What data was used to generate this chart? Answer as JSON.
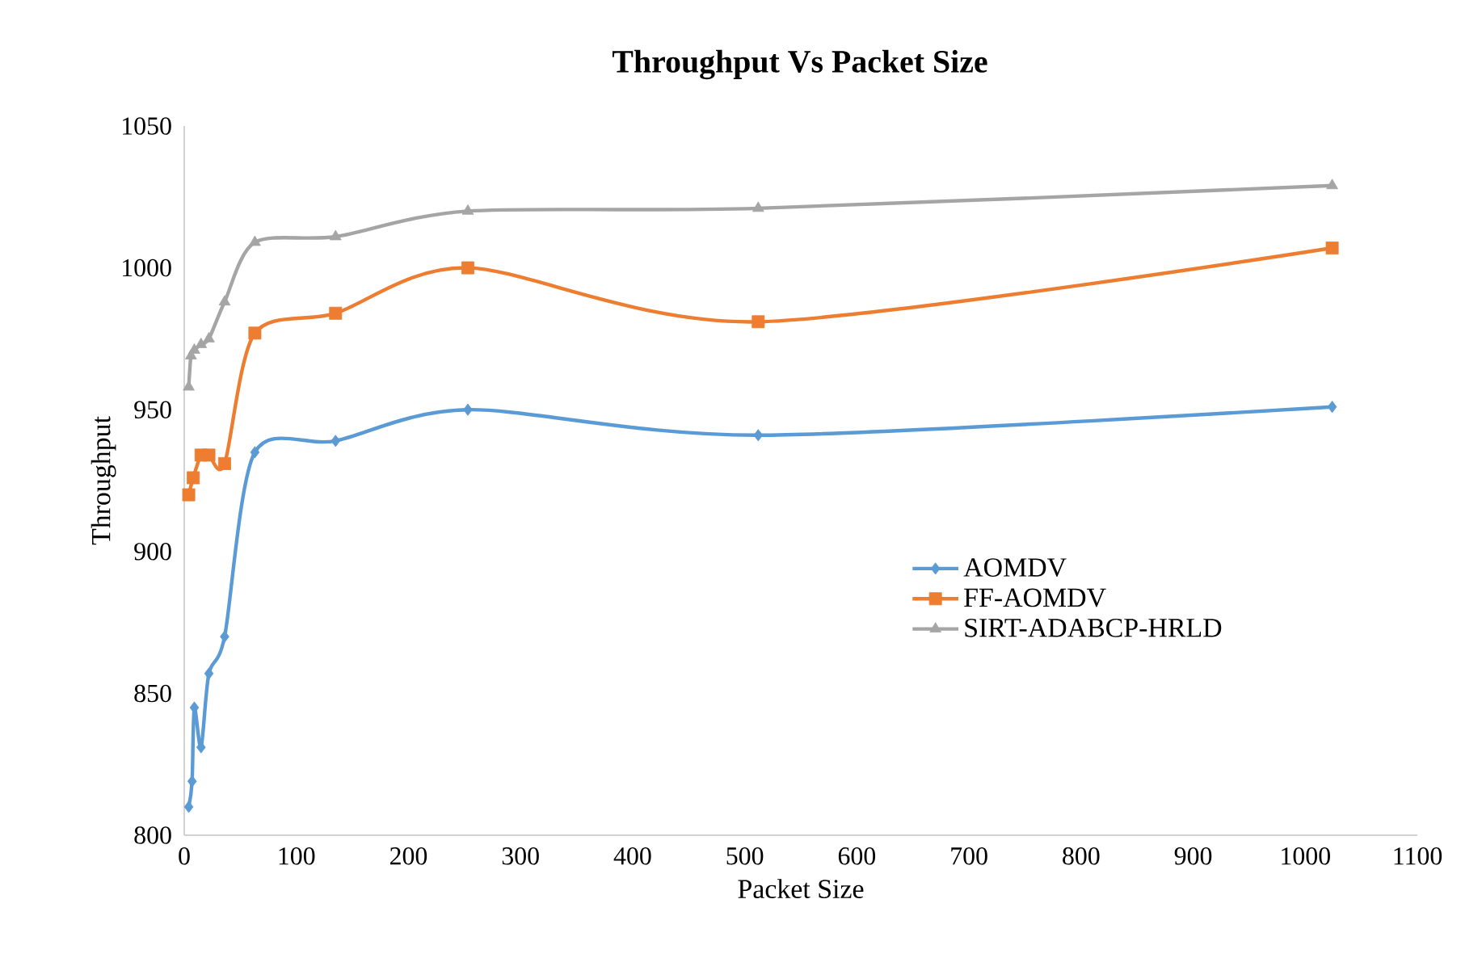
{
  "chart_data": {
    "type": "line",
    "title": "Throughput Vs Packet Size",
    "xlabel": "Packet Size",
    "ylabel": "Throughput",
    "xlim": [
      0,
      1100
    ],
    "xticks": [
      0,
      100,
      200,
      300,
      400,
      500,
      600,
      700,
      800,
      900,
      1000,
      1100
    ],
    "ylim": [
      800,
      1050
    ],
    "yticks": [
      800,
      850,
      900,
      950,
      1000,
      1050
    ],
    "grid": false,
    "legend": "right",
    "line_style": "solid",
    "series": [
      {
        "name": "AOMDV",
        "color": "#5b9bd5",
        "marker": "diamond",
        "x": [
          4,
          7,
          9,
          15,
          22,
          36,
          63,
          135,
          253,
          512,
          1024
        ],
        "values": [
          810,
          819,
          845,
          831,
          857,
          870,
          935,
          939,
          950,
          941,
          951
        ]
      },
      {
        "name": "FF-AOMDV",
        "color": "#ed7d31",
        "marker": "square",
        "x": [
          4,
          8,
          15,
          22,
          36,
          63,
          135,
          253,
          512,
          1024
        ],
        "values": [
          920,
          926,
          934,
          934,
          931,
          977,
          984,
          1000,
          981,
          1007
        ]
      },
      {
        "name": "SIRT-ADABCP-HRLD",
        "color": "#a5a5a5",
        "marker": "triangle",
        "x": [
          4,
          6,
          9,
          15,
          22,
          36,
          63,
          135,
          253,
          512,
          1024
        ],
        "values": [
          958,
          969,
          971,
          973,
          975,
          988,
          1009,
          1011,
          1020,
          1021,
          1029
        ]
      }
    ]
  }
}
